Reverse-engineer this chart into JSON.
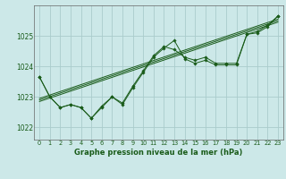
{
  "title": "Graphe pression niveau de la mer (hPa)",
  "bg_color": "#cce8e8",
  "grid_color": "#aacccc",
  "line_color": "#1a5c1a",
  "text_color": "#1a5c1a",
  "xlim": [
    -0.5,
    23.5
  ],
  "ylim": [
    1021.6,
    1026.0
  ],
  "yticks": [
    1022,
    1023,
    1024,
    1025
  ],
  "xticks": [
    0,
    1,
    2,
    3,
    4,
    5,
    6,
    7,
    8,
    9,
    10,
    11,
    12,
    13,
    14,
    15,
    16,
    17,
    18,
    19,
    20,
    21,
    22,
    23
  ],
  "series1": [
    1023.65,
    1023.0,
    1022.65,
    1022.75,
    1022.65,
    1022.3,
    1022.65,
    1023.0,
    1022.75,
    1023.3,
    1023.8,
    1024.3,
    1024.6,
    1024.85,
    1024.25,
    1024.1,
    1024.2,
    1024.05,
    1024.05,
    1024.05,
    1025.05,
    1025.1,
    1025.3,
    1025.65
  ],
  "series2": [
    1023.65,
    1023.0,
    1022.65,
    1022.75,
    1022.65,
    1022.3,
    1022.7,
    1023.0,
    1022.8,
    1023.35,
    1023.85,
    1024.35,
    1024.65,
    1024.55,
    1024.3,
    1024.2,
    1024.3,
    1024.1,
    1024.1,
    1024.1,
    1025.05,
    1025.15,
    1025.35,
    1025.65
  ],
  "trend_lines": [
    [
      1022.85,
      1025.45
    ],
    [
      1022.9,
      1025.5
    ],
    [
      1022.95,
      1025.55
    ]
  ]
}
